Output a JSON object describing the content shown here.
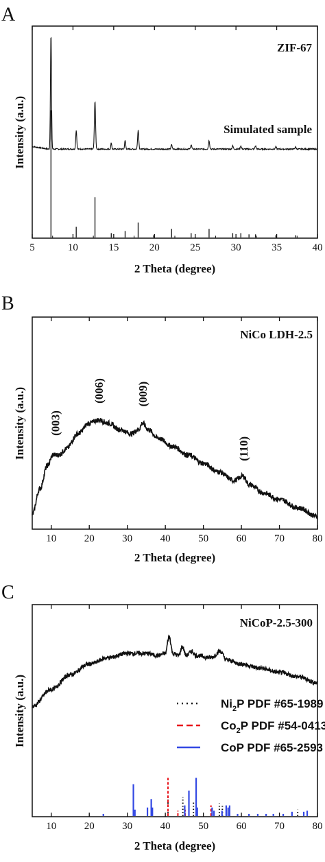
{
  "chart_data": [
    {
      "panel": "A",
      "type": "line",
      "xlabel": "2 Theta (degree)",
      "ylabel": "Intensity (a.u.)",
      "xlim": [
        5,
        40
      ],
      "xticks": [
        5,
        10,
        15,
        20,
        25,
        30,
        35,
        40
      ],
      "series": [
        {
          "name": "ZIF-67",
          "kind": "pattern",
          "baseline": 0.42,
          "noise": 0.006,
          "peaks": [
            [
              7.3,
              0.55,
              0.09
            ],
            [
              10.4,
              0.09,
              0.09
            ],
            [
              12.7,
              0.23,
              0.1
            ],
            [
              14.7,
              0.03,
              0.08
            ],
            [
              16.4,
              0.04,
              0.09
            ],
            [
              18.0,
              0.09,
              0.1
            ],
            [
              22.1,
              0.02,
              0.1
            ],
            [
              24.5,
              0.02,
              0.1
            ],
            [
              26.7,
              0.04,
              0.1
            ],
            [
              29.6,
              0.015,
              0.1
            ],
            [
              30.6,
              0.015,
              0.1
            ],
            [
              32.4,
              0.015,
              0.1
            ],
            [
              34.9,
              0.01,
              0.1
            ],
            [
              37.3,
              0.01,
              0.1
            ]
          ]
        },
        {
          "name": "Simulated sample",
          "kind": "sticks",
          "sticks": [
            [
              7.3,
              0.6
            ],
            [
              10.4,
              0.05
            ],
            [
              12.7,
              0.19
            ],
            [
              14.7,
              0.02
            ],
            [
              16.4,
              0.03
            ],
            [
              18.0,
              0.07
            ],
            [
              19.9,
              0.01
            ],
            [
              22.1,
              0.04
            ],
            [
              24.5,
              0.02
            ],
            [
              26.7,
              0.04
            ],
            [
              29.6,
              0.02
            ],
            [
              30.6,
              0.02
            ],
            [
              31.6,
              0.015
            ],
            [
              32.4,
              0.015
            ],
            [
              34.9,
              0.01
            ],
            [
              37.3,
              0.01
            ]
          ]
        }
      ]
    },
    {
      "panel": "B",
      "type": "line",
      "xlabel": "2 Theta (degree)",
      "ylabel": "Intensity (a.u.)",
      "xlim": [
        5,
        80
      ],
      "xticks": [
        10,
        20,
        30,
        40,
        50,
        60,
        70,
        80
      ],
      "series": [
        {
          "name": "NiCo LDH-2.5",
          "kind": "curve",
          "noise": 0.012,
          "points": [
            [
              5,
              0.07
            ],
            [
              7,
              0.19
            ],
            [
              9,
              0.3
            ],
            [
              10.5,
              0.35
            ],
            [
              12,
              0.35
            ],
            [
              14,
              0.38
            ],
            [
              17,
              0.45
            ],
            [
              20,
              0.5
            ],
            [
              22.5,
              0.515
            ],
            [
              25,
              0.5
            ],
            [
              28,
              0.47
            ],
            [
              31,
              0.45
            ],
            [
              33,
              0.47
            ],
            [
              34,
              0.5
            ],
            [
              35.5,
              0.47
            ],
            [
              38,
              0.43
            ],
            [
              42,
              0.39
            ],
            [
              46,
              0.35
            ],
            [
              50,
              0.31
            ],
            [
              54,
              0.27
            ],
            [
              58,
              0.23
            ],
            [
              60.5,
              0.25
            ],
            [
              62,
              0.21
            ],
            [
              66,
              0.17
            ],
            [
              70,
              0.14
            ],
            [
              75,
              0.1
            ],
            [
              80,
              0.06
            ]
          ]
        }
      ],
      "annotations": [
        {
          "text": "(003)",
          "x": 11
        },
        {
          "text": "(006)",
          "x": 22.5
        },
        {
          "text": "(009)",
          "x": 34
        },
        {
          "text": "(110)",
          "x": 60.5
        }
      ]
    },
    {
      "panel": "C",
      "type": "line",
      "xlabel": "2 Theta (degree)",
      "ylabel": "Intensity (a.u.)",
      "xlim": [
        5,
        80
      ],
      "xticks": [
        10,
        20,
        30,
        40,
        50,
        60,
        70,
        80
      ],
      "series": [
        {
          "name": "NiCoP-2.5-300",
          "kind": "curve",
          "noise": 0.01,
          "points": [
            [
              5,
              0.52
            ],
            [
              10,
              0.6
            ],
            [
              15,
              0.67
            ],
            [
              20,
              0.72
            ],
            [
              25,
              0.75
            ],
            [
              30,
              0.77
            ],
            [
              35,
              0.77
            ],
            [
              38,
              0.76
            ],
            [
              40,
              0.77
            ],
            [
              41,
              0.85
            ],
            [
              42,
              0.77
            ],
            [
              43.5,
              0.76
            ],
            [
              44.5,
              0.8
            ],
            [
              45.5,
              0.76
            ],
            [
              47,
              0.78
            ],
            [
              48,
              0.76
            ],
            [
              52,
              0.75
            ],
            [
              54.5,
              0.78
            ],
            [
              56,
              0.74
            ],
            [
              60,
              0.72
            ],
            [
              65,
              0.7
            ],
            [
              70,
              0.68
            ],
            [
              75,
              0.66
            ],
            [
              80,
              0.63
            ]
          ]
        },
        {
          "name": "Ni2P PDF #65-1989",
          "kind": "sticks",
          "style": "dotted",
          "sticks": [
            [
              40.7,
              0.1
            ],
            [
              44.6,
              0.09
            ],
            [
              47.4,
              0.07
            ],
            [
              54.2,
              0.06
            ],
            [
              55.0,
              0.05
            ],
            [
              74.8,
              0.03
            ]
          ]
        },
        {
          "name": "Co2P PDF #54-0413",
          "kind": "sticks",
          "style": "dashed",
          "sticks": [
            [
              40.7,
              0.18
            ],
            [
              43.3,
              0.025
            ],
            [
              45.2,
              0.03
            ],
            [
              52.0,
              0.05
            ]
          ]
        },
        {
          "name": "CoP PDF #65-2593",
          "kind": "sticks",
          "style": "solid",
          "sticks": [
            [
              23.7,
              0.01
            ],
            [
              31.6,
              0.15
            ],
            [
              32.0,
              0.03
            ],
            [
              35.3,
              0.04
            ],
            [
              36.3,
              0.08
            ],
            [
              36.6,
              0.04
            ],
            [
              45.1,
              0.05
            ],
            [
              46.2,
              0.12
            ],
            [
              48.1,
              0.18
            ],
            [
              48.4,
              0.04
            ],
            [
              52.3,
              0.04
            ],
            [
              52.8,
              0.025
            ],
            [
              54.9,
              0.025
            ],
            [
              56.0,
              0.05
            ],
            [
              56.5,
              0.04
            ],
            [
              56.9,
              0.05
            ],
            [
              59.0,
              0.01
            ],
            [
              62.0,
              0.01
            ],
            [
              64.3,
              0.01
            ],
            [
              66.5,
              0.01
            ],
            [
              68.4,
              0.01
            ],
            [
              71.0,
              0.01
            ],
            [
              73.3,
              0.02
            ],
            [
              76.4,
              0.02
            ],
            [
              77.3,
              0.025
            ]
          ]
        }
      ],
      "legend": [
        {
          "prefix": "Ni",
          "sub": "2",
          "suffix": "P  PDF #65-1989",
          "color": "#111111",
          "dash": "2,5"
        },
        {
          "prefix": "Co",
          "sub": "2",
          "suffix": "P  PDF #54-0413",
          "color": "#e8141a",
          "dash": "9,5"
        },
        {
          "prefix": "CoP  PDF #65-2593",
          "sub": "",
          "suffix": "",
          "color": "#3348e3",
          "dash": ""
        }
      ]
    }
  ],
  "panels": {
    "A": {
      "letter": "A",
      "labels": [
        "ZIF-67",
        "Simulated sample"
      ]
    },
    "B": {
      "letter": "B",
      "labels": [
        "NiCo LDH-2.5"
      ]
    },
    "C": {
      "letter": "C",
      "labels": [
        "NiCoP-2.5-300"
      ]
    }
  },
  "colors": {
    "trace": "#111111",
    "ni2p": "#111111",
    "co2p": "#e8141a",
    "cop": "#3348e3"
  }
}
